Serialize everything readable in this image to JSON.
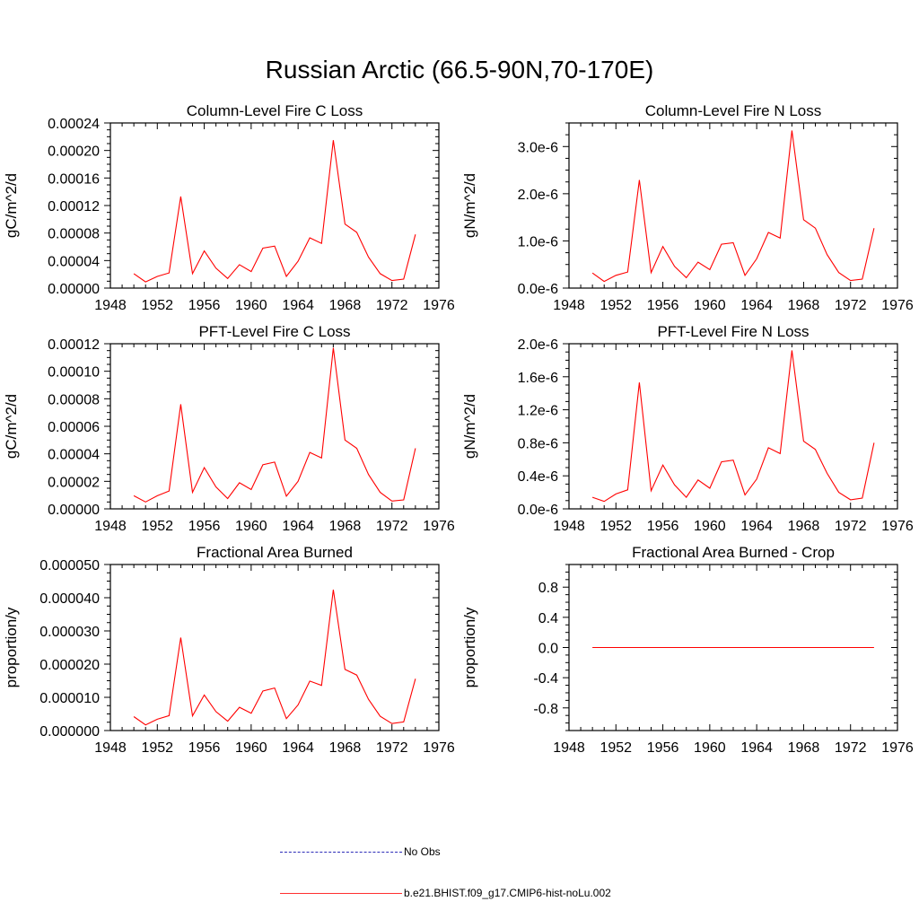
{
  "title": "Russian Arctic (66.5-90N,70-170E)",
  "legend": [
    {
      "label": "No Obs",
      "style": "dashed",
      "color": "#2b2bb8"
    },
    {
      "label": "b.e21.BHIST.f09_g17.CMIP6-hist-noLu.002",
      "style": "solid",
      "color": "#ff0000"
    }
  ],
  "chart_data": [
    {
      "type": "line",
      "title": "Column-Level Fire C Loss",
      "ylabel": "gC/m^2/d",
      "xlim": [
        1948,
        1976
      ],
      "xticks": [
        1948,
        1952,
        1956,
        1960,
        1964,
        1968,
        1972,
        1976
      ],
      "ylim": [
        0,
        0.00024
      ],
      "yticks": [
        0,
        4e-05,
        8e-05,
        0.00012,
        0.00016,
        0.0002,
        0.00024
      ],
      "yticklabels": [
        "0.00000",
        "0.00004",
        "0.00008",
        "0.00012",
        "0.00016",
        "0.00020",
        "0.00024"
      ],
      "series": [
        {
          "name": "b.e21.BHIST.f09_g17.CMIP6-hist-noLu.002",
          "color": "#ff0000",
          "x": [
            1950,
            1951,
            1952,
            1953,
            1954,
            1955,
            1956,
            1957,
            1958,
            1959,
            1960,
            1961,
            1962,
            1963,
            1964,
            1965,
            1966,
            1967,
            1968,
            1969,
            1970,
            1971,
            1972,
            1973,
            1974
          ],
          "y": [
            2.1e-05,
            9e-06,
            1.7e-05,
            2.2e-05,
            0.000133,
            2.1e-05,
            5.4e-05,
            2.9e-05,
            1.4e-05,
            3.4e-05,
            2.4e-05,
            5.8e-05,
            6.1e-05,
            1.7e-05,
            3.9e-05,
            7.3e-05,
            6.5e-05,
            0.000215,
            9.3e-05,
            8.1e-05,
            4.5e-05,
            2.1e-05,
            1.1e-05,
            1.3e-05,
            7.8e-05
          ]
        }
      ]
    },
    {
      "type": "line",
      "title": "Column-Level Fire N Loss",
      "ylabel": "gN/m^2/d",
      "xlim": [
        1948,
        1976
      ],
      "xticks": [
        1948,
        1952,
        1956,
        1960,
        1964,
        1968,
        1972,
        1976
      ],
      "ylim": [
        0,
        3.5e-06
      ],
      "yticks": [
        0,
        1e-06,
        2e-06,
        3e-06
      ],
      "yticklabels": [
        "0.0e-6",
        "1.0e-6",
        "2.0e-6",
        "3.0e-6"
      ],
      "series": [
        {
          "name": "b.e21.BHIST.f09_g17.CMIP6-hist-noLu.002",
          "color": "#ff0000",
          "x": [
            1950,
            1951,
            1952,
            1953,
            1954,
            1955,
            1956,
            1957,
            1958,
            1959,
            1960,
            1961,
            1962,
            1963,
            1964,
            1965,
            1966,
            1967,
            1968,
            1969,
            1970,
            1971,
            1972,
            1973,
            1974
          ],
          "y": [
            3.2e-07,
            1.4e-07,
            2.7e-07,
            3.4e-07,
            2.29e-06,
            3.3e-07,
            8.8e-07,
            4.6e-07,
            2.2e-07,
            5.5e-07,
            3.9e-07,
            9.3e-07,
            9.6e-07,
            2.7e-07,
            6.2e-07,
            1.18e-06,
            1.06e-06,
            3.34e-06,
            1.45e-06,
            1.27e-06,
            7.1e-07,
            3.3e-07,
            1.6e-07,
            1.9e-07,
            1.27e-06
          ]
        }
      ]
    },
    {
      "type": "line",
      "title": "PFT-Level Fire C Loss",
      "ylabel": "gC/m^2/d",
      "xlim": [
        1948,
        1976
      ],
      "xticks": [
        1948,
        1952,
        1956,
        1960,
        1964,
        1968,
        1972,
        1976
      ],
      "ylim": [
        0,
        0.00012
      ],
      "yticks": [
        0,
        2e-05,
        4e-05,
        6e-05,
        8e-05,
        0.0001,
        0.00012
      ],
      "yticklabels": [
        "0.00000",
        "0.00002",
        "0.00004",
        "0.00006",
        "0.00008",
        "0.00010",
        "0.00012"
      ],
      "series": [
        {
          "name": "b.e21.BHIST.f09_g17.CMIP6-hist-noLu.002",
          "color": "#ff0000",
          "x": [
            1950,
            1951,
            1952,
            1953,
            1954,
            1955,
            1956,
            1957,
            1958,
            1959,
            1960,
            1961,
            1962,
            1963,
            1964,
            1965,
            1966,
            1967,
            1968,
            1969,
            1970,
            1971,
            1972,
            1973,
            1974
          ],
          "y": [
            9.5e-06,
            5e-06,
            9.5e-06,
            1.3e-05,
            7.6e-05,
            1.2e-05,
            3e-05,
            1.6e-05,
            7.5e-06,
            1.9e-05,
            1.4e-05,
            3.2e-05,
            3.4e-05,
            9.2e-06,
            2e-05,
            4.1e-05,
            3.7e-05,
            0.000117,
            5e-05,
            4.4e-05,
            2.5e-05,
            1.2e-05,
            5.7e-06,
            6.5e-06,
            4.4e-05
          ]
        }
      ]
    },
    {
      "type": "line",
      "title": "PFT-Level Fire N Loss",
      "ylabel": "gN/m^2/d",
      "xlim": [
        1948,
        1976
      ],
      "xticks": [
        1948,
        1952,
        1956,
        1960,
        1964,
        1968,
        1972,
        1976
      ],
      "ylim": [
        0,
        2e-06
      ],
      "yticks": [
        0,
        4e-07,
        8e-07,
        1.2e-06,
        1.6e-06,
        2e-06
      ],
      "yticklabels": [
        "0.0e-6",
        "0.4e-6",
        "0.8e-6",
        "1.2e-6",
        "1.6e-6",
        "2.0e-6"
      ],
      "series": [
        {
          "name": "b.e21.BHIST.f09_g17.CMIP6-hist-noLu.002",
          "color": "#ff0000",
          "x": [
            1950,
            1951,
            1952,
            1953,
            1954,
            1955,
            1956,
            1957,
            1958,
            1959,
            1960,
            1961,
            1962,
            1963,
            1964,
            1965,
            1966,
            1967,
            1968,
            1969,
            1970,
            1971,
            1972,
            1973,
            1974
          ],
          "y": [
            1.4e-07,
            9e-08,
            1.8e-07,
            2.3e-07,
            1.53e-06,
            2.2e-07,
            5.3e-07,
            2.9e-07,
            1.4e-07,
            3.5e-07,
            2.5e-07,
            5.7e-07,
            5.9e-07,
            1.7e-07,
            3.6e-07,
            7.4e-07,
            6.7e-07,
            1.92e-06,
            8.2e-07,
            7.2e-07,
            4.3e-07,
            2e-07,
            1.1e-07,
            1.3e-07,
            8e-07
          ]
        }
      ]
    },
    {
      "type": "line",
      "title": "Fractional Area Burned",
      "ylabel": "proportion/y",
      "xlim": [
        1948,
        1976
      ],
      "xticks": [
        1948,
        1952,
        1956,
        1960,
        1964,
        1968,
        1972,
        1976
      ],
      "ylim": [
        0,
        5e-05
      ],
      "yticks": [
        0,
        1e-05,
        2e-05,
        3e-05,
        4e-05,
        5e-05
      ],
      "yticklabels": [
        "0.000000",
        "0.000010",
        "0.000020",
        "0.000030",
        "0.000040",
        "0.000050"
      ],
      "series": [
        {
          "name": "b.e21.BHIST.f09_g17.CMIP6-hist-noLu.002",
          "color": "#ff0000",
          "x": [
            1950,
            1951,
            1952,
            1953,
            1954,
            1955,
            1956,
            1957,
            1958,
            1959,
            1960,
            1961,
            1962,
            1963,
            1964,
            1965,
            1966,
            1967,
            1968,
            1969,
            1970,
            1971,
            1972,
            1973,
            1974
          ],
          "y": [
            4.2e-06,
            1.7e-06,
            3.4e-06,
            4.5e-06,
            2.8e-05,
            4.4e-06,
            1.07e-05,
            5.7e-06,
            2.8e-06,
            7e-06,
            5.2e-06,
            1.19e-05,
            1.28e-05,
            3.6e-06,
            7.7e-06,
            1.49e-05,
            1.36e-05,
            4.24e-05,
            1.84e-05,
            1.67e-05,
            9.4e-06,
            4.3e-06,
            2.1e-06,
            2.6e-06,
            1.56e-05
          ]
        }
      ]
    },
    {
      "type": "line",
      "title": "Fractional Area Burned - Crop",
      "ylabel": "proportion/y",
      "xlim": [
        1948,
        1976
      ],
      "xticks": [
        1948,
        1952,
        1956,
        1960,
        1964,
        1968,
        1972,
        1976
      ],
      "ylim": [
        -1.1,
        1.1
      ],
      "yticks": [
        -0.8,
        -0.4,
        0,
        0.4,
        0.8
      ],
      "yticklabels": [
        "-0.8",
        "-0.4",
        "0.0",
        "0.4",
        "0.8"
      ],
      "series": [
        {
          "name": "b.e21.BHIST.f09_g17.CMIP6-hist-noLu.002",
          "color": "#ff0000",
          "x": [
            1950,
            1951,
            1952,
            1953,
            1954,
            1955,
            1956,
            1957,
            1958,
            1959,
            1960,
            1961,
            1962,
            1963,
            1964,
            1965,
            1966,
            1967,
            1968,
            1969,
            1970,
            1971,
            1972,
            1973,
            1974
          ],
          "y": [
            0,
            0,
            0,
            0,
            0,
            0,
            0,
            0,
            0,
            0,
            0,
            0,
            0,
            0,
            0,
            0,
            0,
            0,
            0,
            0,
            0,
            0,
            0,
            0,
            0
          ]
        }
      ]
    }
  ]
}
